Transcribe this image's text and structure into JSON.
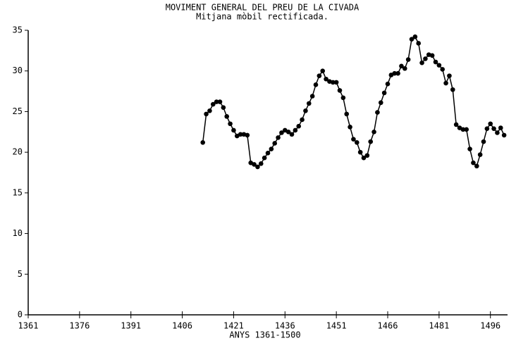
{
  "chart_data": {
    "type": "line",
    "title": "MOVIMENT GENERAL DEL PREU DE LA CIVADA",
    "subtitle": "Mitjana mòbil rectificada.",
    "x_label": "ANYS 1361-1500",
    "x": [
      1412,
      1413,
      1414,
      1415,
      1416,
      1417,
      1418,
      1419,
      1420,
      1421,
      1422,
      1423,
      1424,
      1425,
      1426,
      1427,
      1428,
      1429,
      1430,
      1431,
      1432,
      1433,
      1434,
      1435,
      1436,
      1437,
      1438,
      1439,
      1440,
      1441,
      1442,
      1443,
      1444,
      1445,
      1446,
      1447,
      1448,
      1449,
      1450,
      1451,
      1452,
      1453,
      1454,
      1455,
      1456,
      1457,
      1458,
      1459,
      1460,
      1461,
      1462,
      1463,
      1464,
      1465,
      1466,
      1467,
      1468,
      1469,
      1470,
      1471,
      1472,
      1473,
      1474,
      1475,
      1476,
      1477,
      1478,
      1479,
      1480,
      1481,
      1482,
      1483,
      1484,
      1485,
      1486,
      1487,
      1488,
      1489,
      1490,
      1491,
      1492,
      1493,
      1494,
      1495,
      1496,
      1497,
      1498,
      1499,
      1500
    ],
    "series": [
      {
        "color": "#000000",
        "values": [
          21.2,
          24.7,
          25.1,
          25.9,
          26.2,
          26.2,
          25.5,
          24.4,
          23.5,
          22.7,
          22.0,
          22.2,
          22.2,
          22.1,
          18.7,
          18.5,
          18.2,
          18.6,
          19.3,
          19.9,
          20.4,
          21.1,
          21.8,
          22.4,
          22.7,
          22.5,
          22.2,
          22.7,
          23.2,
          24.0,
          25.1,
          26.0,
          26.9,
          28.3,
          29.4,
          30.0,
          29.0,
          28.7,
          28.6,
          28.6,
          27.6,
          26.7,
          24.7,
          23.1,
          21.6,
          21.2,
          20.0,
          19.3,
          19.6,
          21.3,
          22.5,
          24.9,
          26.1,
          27.3,
          28.4,
          29.5,
          29.7,
          29.7,
          30.6,
          30.3,
          31.4,
          33.9,
          34.2,
          33.4,
          31.0,
          31.5,
          32.0,
          31.9,
          31.1,
          30.7,
          30.2,
          28.5,
          29.4,
          27.7,
          23.4,
          23.0,
          22.8,
          22.8,
          20.4,
          18.7,
          18.3,
          19.7,
          21.3,
          22.9,
          23.5,
          22.9,
          22.4,
          23.0,
          22.1
        ]
      }
    ],
    "xlim": [
      1361,
      1501
    ],
    "xticks": [
      1361,
      1376,
      1391,
      1406,
      1421,
      1436,
      1451,
      1466,
      1481,
      1496
    ],
    "ylim": [
      0,
      35
    ],
    "yticks": [
      0,
      5,
      10,
      15,
      20,
      25,
      30,
      35
    ],
    "grid": false
  }
}
